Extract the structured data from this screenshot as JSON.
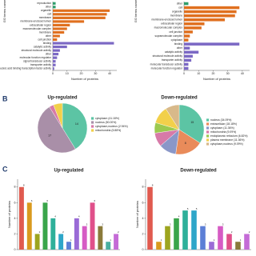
{
  "panel_labels": [
    "B",
    "C"
  ],
  "chart_data": [
    {
      "type": "barh",
      "xlabel": "Number of proteins",
      "ylabel": "GO terms name",
      "categories": [
        "reproduction",
        "other",
        "organelle",
        "cell",
        "membrane",
        "membrane-enclosed lumen",
        "extracellular region",
        "macromolecular complex",
        "membrane",
        "other",
        "cell junction",
        "binding",
        "catalytic activity",
        "structural molecule activity",
        "other",
        "molecular function regulator",
        "signal transducer activity",
        "transporter activity",
        "nucleic acid binding transcription factor activity"
      ],
      "values": [
        2,
        2,
        40,
        38,
        37,
        22,
        12,
        10,
        8,
        5,
        3,
        43,
        10,
        5,
        4,
        3,
        2,
        2,
        1
      ],
      "colors": [
        "#2e9e6b",
        "#2e9e6b",
        "#e0701f",
        "#e0701f",
        "#e0701f",
        "#e0701f",
        "#e0701f",
        "#e0701f",
        "#e0701f",
        "#e0701f",
        "#e0701f",
        "#7b68c4",
        "#7b68c4",
        "#7b68c4",
        "#7b68c4",
        "#7b68c4",
        "#7b68c4",
        "#7b68c4",
        "#7b68c4"
      ],
      "xlim": [
        0,
        45
      ],
      "xticks": [
        0,
        10,
        20,
        30,
        40
      ]
    },
    {
      "type": "barh",
      "xlabel": "Number of proteins",
      "ylabel": "GO terms name",
      "categories": [
        "other",
        "cell",
        "organelle",
        "membrane",
        "membrane-enclosed lumen",
        "extracellular region",
        "macromolecular complex",
        "cell junction",
        "supramolecular complex",
        "cytoplasm",
        "binding",
        "other",
        "catalytic activity",
        "structural molecule activity",
        "transporter activity",
        "molecular transducer activity",
        "molecular function regulator"
      ],
      "values": [
        3,
        38,
        36,
        35,
        28,
        14,
        12,
        6,
        4,
        3,
        38,
        4,
        10,
        6,
        5,
        3,
        3
      ],
      "colors": [
        "#2e9e6b",
        "#e0701f",
        "#e0701f",
        "#e0701f",
        "#e0701f",
        "#e0701f",
        "#e0701f",
        "#e0701f",
        "#e0701f",
        "#e0701f",
        "#7b68c4",
        "#7b68c4",
        "#7b68c4",
        "#7b68c4",
        "#7b68c4",
        "#7b68c4",
        "#7b68c4"
      ],
      "xlim": [
        0,
        45
      ],
      "xticks": [
        0,
        10,
        20,
        30,
        40
      ]
    },
    {
      "type": "pie",
      "title": "Up-regulated",
      "categories": [
        "cytoplasm (41.18%)",
        "nucleus (50.00%)",
        "cytoplasm,nucleus (2.94%)",
        "mitochondria (5.88%)"
      ],
      "values": [
        14,
        17,
        1,
        2
      ],
      "colors": [
        "#5cc4a4",
        "#a98fa8",
        "#d77aa8",
        "#f2d04a"
      ]
    },
    {
      "type": "pie",
      "title": "Down-regulated",
      "categories": [
        "nucleus (34.09%)",
        "extracellular (18.18%)",
        "cytoplasm (11.36%)",
        "mitochondria (9.09%)",
        "endoplasmic reticulum (6.82%)",
        "plasma membrane (11.36%)",
        "cytoplasm,nucleus (9.09%)"
      ],
      "values": [
        15,
        8,
        5,
        4,
        3,
        5,
        4
      ],
      "colors": [
        "#5cc4a4",
        "#e98b5a",
        "#8a97c8",
        "#d77aa8",
        "#9cc94f",
        "#f2d04a",
        "#d8b98a"
      ]
    },
    {
      "type": "bar",
      "title": "Up-regulated",
      "ylabel": "Number of proteins",
      "values": [
        8,
        6,
        2,
        6,
        4,
        2,
        1,
        4,
        3,
        6,
        3,
        1,
        2
      ],
      "colors": [
        "#e05a4f",
        "#d99a1e",
        "#9da51f",
        "#3aa54a",
        "#2eb09a",
        "#2ea6c9",
        "#5c7fd6",
        "#9a6bd6",
        "#d65bc4",
        "#e0508a",
        "#8a7a3a",
        "#4ab0a0",
        "#c46bd6"
      ],
      "ylim": [
        0,
        9
      ],
      "yticks": [
        0,
        2,
        4,
        6,
        8
      ]
    },
    {
      "type": "bar",
      "title": "Down-regulated",
      "ylabel": "Number of proteins",
      "values": [
        8,
        1,
        3,
        4,
        5,
        5,
        3,
        1,
        3,
        2,
        1,
        2
      ],
      "colors": [
        "#e05a4f",
        "#d99a1e",
        "#9da51f",
        "#3aa54a",
        "#2eb09a",
        "#2ea6c9",
        "#5c7fd6",
        "#9a6bd6",
        "#d65bc4",
        "#e0508a",
        "#8a7a3a",
        "#c46bd6"
      ],
      "ylim": [
        0,
        9
      ],
      "yticks": [
        0,
        2,
        4,
        6,
        8
      ]
    }
  ]
}
